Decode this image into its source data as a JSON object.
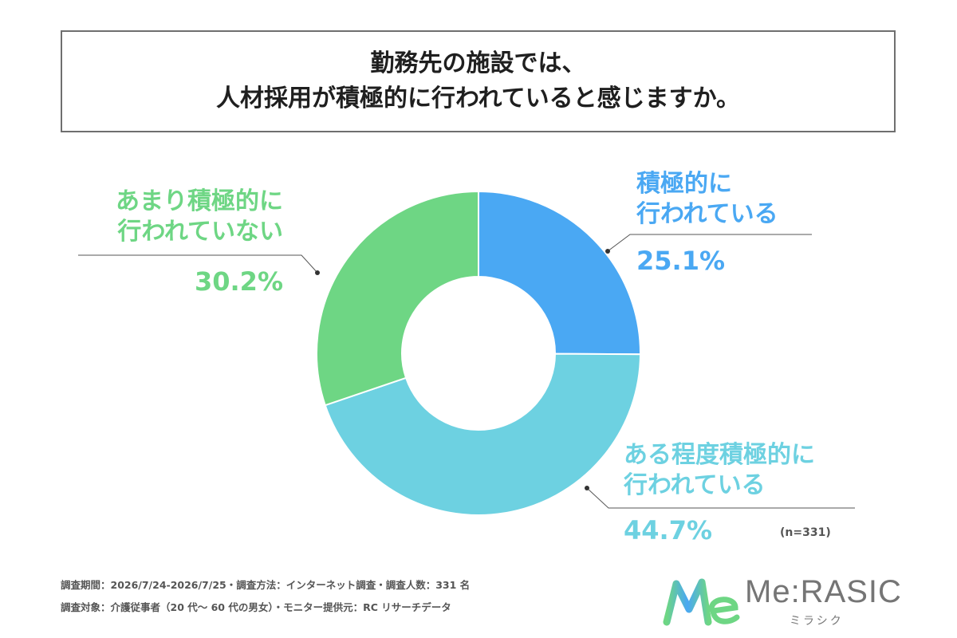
{
  "header": {
    "title_line1": "勤務先の施設では、",
    "title_line2": "人材採用が積極的に行われていると感じますか。"
  },
  "chart_data": {
    "type": "pie",
    "variant": "donut",
    "slices": [
      {
        "label_lines": [
          "積極的に",
          "行われている"
        ],
        "value": 25.1,
        "value_label": "25.1%",
        "color": "#4aa8f3"
      },
      {
        "label_lines": [
          "ある程度積極的に",
          "行われている"
        ],
        "value": 44.7,
        "value_label": "44.7%",
        "color": "#6dd1e1"
      },
      {
        "label_lines": [
          "あまり積極的に",
          "行われていない"
        ],
        "value": 30.2,
        "value_label": "30.2%",
        "color": "#6ed684"
      }
    ],
    "sample_size": "(n=331)"
  },
  "footer": {
    "line1": "調査期間：2026/7/24-2026/7/25・調査方法：インターネット調査・調査人数：331 名",
    "line2": "調査対象：介護従事者（20 代～ 60 代の男女）・モニター提供元：RC リサーチデータ"
  },
  "logo": {
    "brand": "Me:RASIC",
    "sub": "ミラシク",
    "mark_colors": [
      "#6ed684",
      "#4aa8f3",
      "#6dd1e1"
    ]
  }
}
